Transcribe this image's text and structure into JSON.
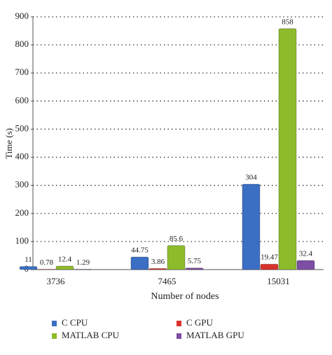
{
  "chart_data": {
    "type": "bar",
    "x_label": "Number of nodes",
    "y_label": "Time (s)",
    "categories": [
      "3736",
      "7465",
      "15031"
    ],
    "series": [
      {
        "name": "C CPU",
        "color": "#3b6fc4",
        "values": [
          11,
          44.75,
          304
        ]
      },
      {
        "name": "C GPU",
        "color": "#d9332b",
        "values": [
          0.78,
          3.86,
          19.47
        ]
      },
      {
        "name": "MATLAB CPU",
        "color": "#8dbb2c",
        "values": [
          12.4,
          85.6,
          858
        ]
      },
      {
        "name": "MATLAB GPU",
        "color": "#7d4fa3",
        "values": [
          1.29,
          5.75,
          32.4
        ]
      }
    ],
    "ylim": [
      0,
      900
    ],
    "yticks": [
      0,
      100,
      200,
      300,
      400,
      500,
      600,
      700,
      800,
      900
    ],
    "grid": true
  }
}
